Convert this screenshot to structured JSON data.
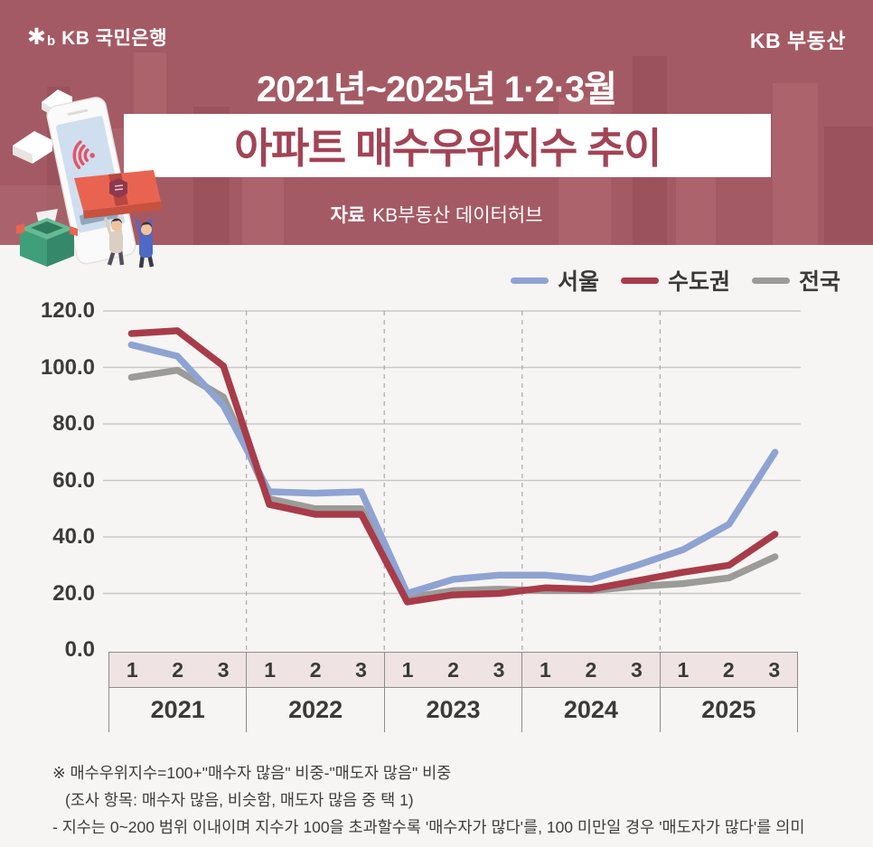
{
  "header": {
    "logo_left_symbol": "✱",
    "logo_left_b": "b",
    "logo_left_text": "KB 국민은행",
    "logo_right_text": "KB 부동산",
    "subtitle": "2021년~2025년 1·2·3월",
    "title": "아파트 매수우위지수 추이",
    "source_label": "자료",
    "source_value": "KB부동산 데이터허브"
  },
  "legend": [
    {
      "label": "서울",
      "color": "#8fa3d2"
    },
    {
      "label": "수도권",
      "color": "#a83b49"
    },
    {
      "label": "전국",
      "color": "#9b9b98"
    }
  ],
  "chart_data": {
    "type": "line",
    "title": "아파트 매수우위지수 추이",
    "subtitle": "2021년~2025년 1·2·3월",
    "source": "KB부동산 데이터허브",
    "ylim": [
      0,
      120
    ],
    "ytick_labels": [
      "120.0",
      "100.0",
      "80.0",
      "60.0",
      "40.0",
      "20.0",
      "0.0"
    ],
    "grid": "horizontal solid lines every 20; dashed vertical separators between years",
    "legend_position": "top-right",
    "x_years": [
      "2021",
      "2022",
      "2023",
      "2024",
      "2025"
    ],
    "x_months_per_year": [
      "1",
      "2",
      "3"
    ],
    "categories": [
      "2021-1",
      "2021-2",
      "2021-3",
      "2022-1",
      "2022-2",
      "2022-3",
      "2023-1",
      "2023-2",
      "2023-3",
      "2024-1",
      "2024-2",
      "2024-3",
      "2025-1",
      "2025-2",
      "2025-3"
    ],
    "series": [
      {
        "name": "서울",
        "color": "#8fa3d2",
        "values": [
          108,
          104,
          86.5,
          56,
          55.5,
          56,
          20,
          25,
          26.5,
          26.5,
          25,
          30,
          35.5,
          44.5,
          70
        ]
      },
      {
        "name": "수도권",
        "color": "#a83b49",
        "values": [
          112,
          113,
          100.5,
          51.5,
          48,
          48,
          17,
          19.5,
          20,
          22,
          21.5,
          24.5,
          27.5,
          30,
          41
        ]
      },
      {
        "name": "전국",
        "color": "#9b9b98",
        "values": [
          96.5,
          99,
          89.5,
          53.5,
          50,
          50,
          18.5,
          21,
          21.5,
          21,
          21,
          22.5,
          23.5,
          25.5,
          33
        ]
      }
    ]
  },
  "footnotes": [
    "※ 매수우위지수=100+\"매수자 많음\" 비중-\"매도자 많음\" 비중",
    "(조사 항목: 매수자 많음, 비슷함, 매도자 많음 중 택 1)",
    "- 지수는 0~200 범위 이내이며 지수가 100을 초과할수록 '매수자가 많다'를, 100 미만일 경우 '매도자가 많다'를 의미"
  ],
  "colors": {
    "header_bg": "#a45a64",
    "building_dark": "#9c525c",
    "building_light": "#ac636c",
    "banner_bg": "#ffffff",
    "title_text": "#a24456",
    "page_bg": "#f6f5f3",
    "gridline": "#c9c9c9",
    "dashed_separator": "#a9a9a9",
    "month_row_bg": "#efe3e3",
    "table_border": "#8d8d8d",
    "axis_text": "#3a3a3a",
    "footnote_text": "#3d3d3d"
  }
}
